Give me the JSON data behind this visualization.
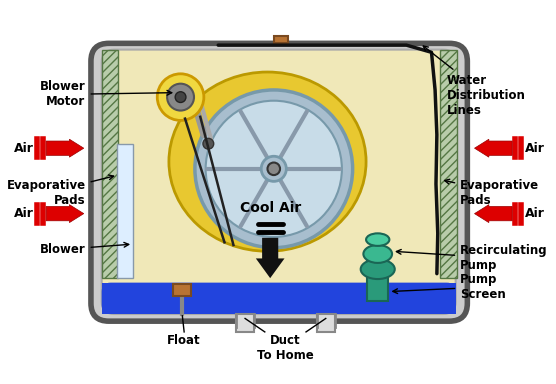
{
  "bg_color": "#ffffff",
  "outer_box_fill": "#cccccc",
  "outer_box_edge": "#555555",
  "inner_box_fill": "#f0e8b8",
  "water_color": "#2244dd",
  "pad_fill": "#b8ccaa",
  "pad_hatch_color": "#557744",
  "fan_bg_color": "#e8c830",
  "fan_bg_edge": "#bb9900",
  "wheel_outer_fill": "#a8bece",
  "wheel_outer_edge": "#7799aa",
  "wheel_inner_fill": "#c8dce8",
  "wheel_spoke_color": "#8899aa",
  "wheel_rim_color": "#9aacb8",
  "hub_fill": "#888888",
  "motor_fill": "#f0d840",
  "motor_edge": "#cc9900",
  "motor_inner_fill": "#888888",
  "pump_fill": "#2a9a7a",
  "pump_edge": "#1a6655",
  "pump_top_fill": "#3ab890",
  "float_fill": "#b87333",
  "float_edge": "#7a4a20",
  "water_line_color": "#111111",
  "arrow_red": "#dd0000",
  "arrow_red_edge": "#990000",
  "cool_air_color": "#111111",
  "label_color": "#000000",
  "blower_column_fill": "#ddeeff",
  "blower_column_edge": "#8899aa",
  "labels": {
    "blower_motor": "Blower\nMotor",
    "evap_pads_left": "Evaporative\nPads",
    "blower": "Blower",
    "water_dist": "Water\nDistribution\nLines",
    "evap_pads_right": "Evaporative\nPads",
    "recirculating_pump": "Recirculating\nPump",
    "pump_screen": "Pump\nScreen",
    "float_label": "Float",
    "duct_to_home": "Duct\nTo Home",
    "cool_air": "Cool Air",
    "air": "Air"
  }
}
